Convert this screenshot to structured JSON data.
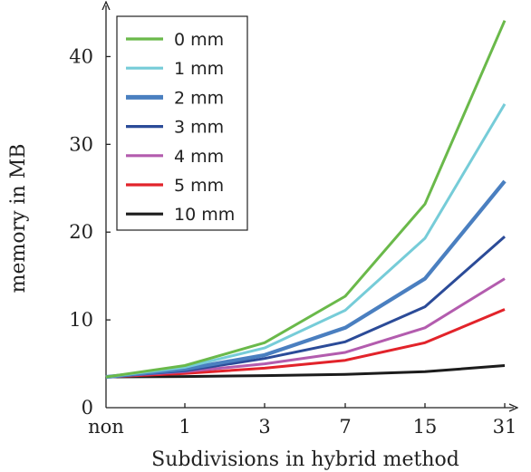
{
  "chart_data": {
    "type": "line",
    "xlabel": "Subdivisions in hybrid method",
    "ylabel": "memory in MB",
    "categories": [
      "non",
      "1",
      "3",
      "7",
      "15",
      "31"
    ],
    "ylim": [
      0,
      45
    ],
    "yticks": [
      0,
      10,
      20,
      30,
      40
    ],
    "grid": false,
    "legend_position": "top-left",
    "series": [
      {
        "name": "0 mm",
        "color": "#6ab94a",
        "values": [
          3.5,
          4.8,
          7.4,
          12.7,
          23.2,
          44.1
        ]
      },
      {
        "name": "1 mm",
        "color": "#76ccd8",
        "values": [
          3.5,
          4.6,
          6.8,
          11.1,
          19.3,
          34.6
        ]
      },
      {
        "name": "2 mm",
        "color": "#4a7fc0",
        "values": [
          3.5,
          4.4,
          6.0,
          9.1,
          14.7,
          25.8
        ]
      },
      {
        "name": "3 mm",
        "color": "#2b4b98",
        "values": [
          3.5,
          4.2,
          5.6,
          7.5,
          11.5,
          19.5
        ]
      },
      {
        "name": "4 mm",
        "color": "#b35cae",
        "values": [
          3.5,
          4.1,
          5.0,
          6.3,
          9.1,
          14.7
        ]
      },
      {
        "name": "5 mm",
        "color": "#e2232a",
        "values": [
          3.5,
          3.9,
          4.5,
          5.4,
          7.4,
          11.2
        ]
      },
      {
        "name": "10 mm",
        "color": "#1c1c1c",
        "values": [
          3.5,
          3.55,
          3.65,
          3.8,
          4.1,
          4.8
        ]
      }
    ]
  }
}
